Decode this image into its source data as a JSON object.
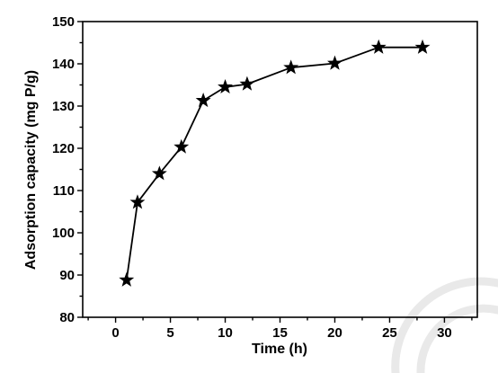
{
  "chart_data": {
    "type": "line",
    "xlabel": "Time (h)",
    "ylabel": "Adsorption capacity (mg P/g)",
    "xlim": [
      -3,
      33
    ],
    "ylim": [
      80,
      150
    ],
    "xticks": [
      0,
      5,
      10,
      15,
      20,
      25,
      30
    ],
    "yticks": [
      80,
      90,
      100,
      110,
      120,
      130,
      140,
      150
    ],
    "marker": "star",
    "line_color": "#000000",
    "marker_color": "#000000",
    "grid": false,
    "series": [
      {
        "x": [
          1,
          2,
          4,
          6,
          8,
          10,
          12,
          16,
          20,
          24,
          28
        ],
        "y": [
          88.8,
          107.2,
          114.0,
          120.3,
          131.3,
          134.5,
          135.2,
          139.1,
          140.1,
          143.9,
          143.9
        ]
      }
    ]
  }
}
